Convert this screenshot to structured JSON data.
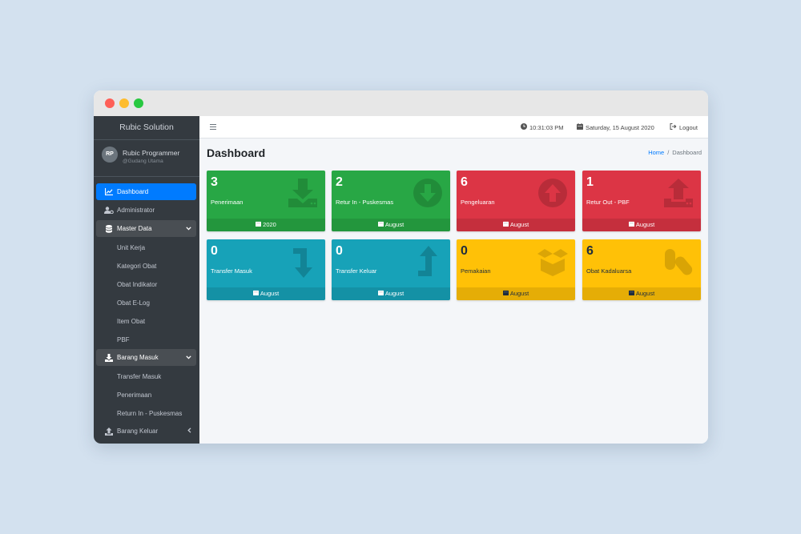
{
  "sidebar": {
    "brand": "Rubic Solution",
    "user": {
      "initials": "RP",
      "name": "Rubic Programmer",
      "subtitle": "@Gudang Utama"
    },
    "items": [
      {
        "label": "Dashboard",
        "icon": "chart-line-icon"
      },
      {
        "label": "Administrator",
        "icon": "users-cog-icon"
      },
      {
        "label": "Master Data",
        "icon": "database-icon",
        "sub": [
          "Unit Kerja",
          "Kategori Obat",
          "Obat Indikator",
          "Obat E-Log",
          "Item Obat",
          "PBF"
        ]
      },
      {
        "label": "Barang Masuk",
        "icon": "download-icon",
        "sub": [
          "Transfer Masuk",
          "Penerimaan",
          "Return In - Puskesmas"
        ]
      },
      {
        "label": "Barang Keluar",
        "icon": "upload-icon"
      }
    ]
  },
  "topbar": {
    "time": "10:31:03 PM",
    "date": "Saturday, 15 August 2020",
    "logout": "Logout"
  },
  "page": {
    "title": "Dashboard",
    "breadcrumb": {
      "home": "Home",
      "current": "Dashboard"
    }
  },
  "boxes": [
    {
      "value": "3",
      "label": "Penerimaan",
      "footer": "2020",
      "color": "#28a745",
      "icon": "download-icon"
    },
    {
      "value": "2",
      "label": "Retur In - Puskesmas",
      "footer": "August",
      "color": "#28a745",
      "icon": "arrow-circle-down-icon"
    },
    {
      "value": "6",
      "label": "Pengeluaran",
      "footer": "August",
      "color": "#dc3545",
      "icon": "arrow-circle-up-icon"
    },
    {
      "value": "1",
      "label": "Retur Out - PBF",
      "footer": "August",
      "color": "#dc3545",
      "icon": "upload-icon"
    },
    {
      "value": "0",
      "label": "Transfer Masuk",
      "footer": "August",
      "color": "#17a2b8",
      "icon": "level-down-icon"
    },
    {
      "value": "0",
      "label": "Transfer Keluar",
      "footer": "August",
      "color": "#17a2b8",
      "icon": "level-up-icon"
    },
    {
      "value": "0",
      "label": "Pemakaian",
      "footer": "August",
      "color": "#ffc107",
      "icon": "box-open-icon"
    },
    {
      "value": "6",
      "label": "Obat Kadaluarsa",
      "footer": "August",
      "color": "#ffc107",
      "icon": "capsules-icon"
    }
  ]
}
